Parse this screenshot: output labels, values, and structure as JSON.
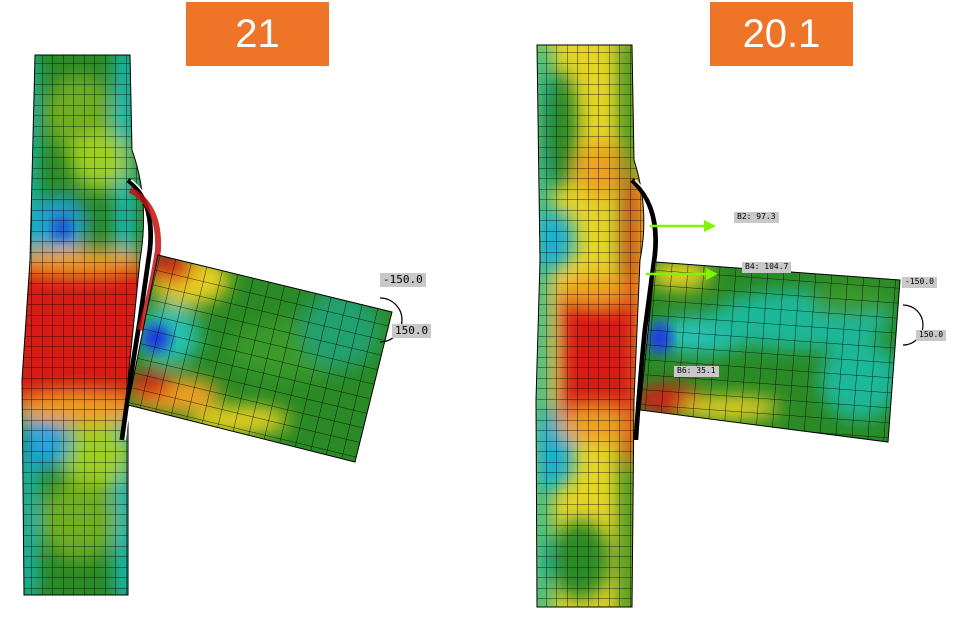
{
  "panels": [
    {
      "number": "21",
      "moment_labels": [
        "-150.0",
        "150.0"
      ]
    },
    {
      "number": "20.1",
      "moment_labels": [
        "-150.0",
        "150.0"
      ],
      "bolt_labels": [
        "B2: 97.3",
        "B4: 104.7",
        "B6: 35.1"
      ]
    }
  ],
  "colors": {
    "badge": "#ee7428",
    "arrow": "#7df700"
  }
}
